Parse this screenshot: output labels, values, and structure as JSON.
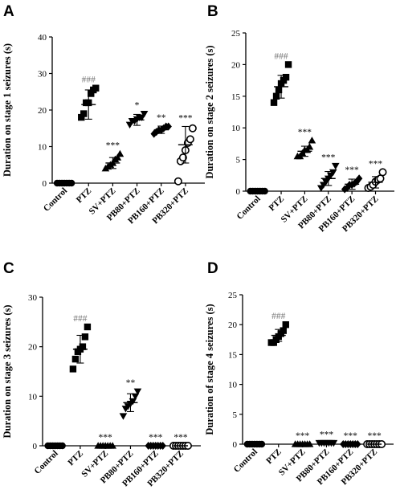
{
  "figure": {
    "panels": [
      "A",
      "B",
      "C",
      "D"
    ]
  },
  "chart_data": [
    {
      "panel": "A",
      "type": "scatter",
      "ylabel": "Duration on stage 1 seizures (s)",
      "xlabel": "",
      "ylim": [
        0,
        40
      ],
      "yticks": [
        0,
        10,
        20,
        30,
        40
      ],
      "categories": [
        "Control",
        "PTZ",
        "SV+PTZ",
        "PB80+PTZ",
        "PB160+PTZ",
        "PB320+PTZ"
      ],
      "markers": [
        "circle",
        "square",
        "triangle-up",
        "triangle-down",
        "diamond",
        "circle-open"
      ],
      "significance": [
        "",
        "###",
        "***",
        "*",
        "**",
        "***"
      ],
      "mean": [
        0,
        21.5,
        5.5,
        17.3,
        14.6,
        10.5
      ],
      "sd": [
        0,
        4.0,
        1.5,
        1.5,
        1.0,
        5.0
      ],
      "points": [
        [
          0,
          0,
          0,
          0,
          0,
          0,
          0
        ],
        [
          18,
          19,
          22,
          22,
          24.5,
          25.5,
          26
        ],
        [
          4,
          4.5,
          5,
          5.5,
          6.5,
          7,
          8
        ],
        [
          16,
          17,
          17,
          17.5,
          18,
          18,
          19
        ],
        [
          13.5,
          14,
          14.5,
          14.5,
          15,
          15.5,
          15.5
        ],
        [
          0.5,
          6,
          7,
          9,
          11,
          12,
          15
        ]
      ]
    },
    {
      "panel": "B",
      "type": "scatter",
      "ylabel": "Duration on stage 2 seizures (s)",
      "xlabel": "",
      "ylim": [
        0,
        25
      ],
      "yticks": [
        0,
        5,
        10,
        15,
        20,
        25
      ],
      "categories": [
        "Control",
        "PTZ",
        "SV+PTZ",
        "PB80+PTZ",
        "PB160+PTZ",
        "PB320+PTZ"
      ],
      "markers": [
        "circle",
        "square",
        "triangle-up",
        "triangle-down",
        "diamond",
        "circle-open"
      ],
      "significance": [
        "",
        "###",
        "***",
        "***",
        "***",
        "***"
      ],
      "mean": [
        0,
        16.5,
        6.3,
        2.0,
        1.1,
        1.4
      ],
      "sd": [
        0,
        1.8,
        0.8,
        1.1,
        0.8,
        0.9
      ],
      "points": [
        [
          0,
          0,
          0,
          0,
          0,
          0,
          0
        ],
        [
          14,
          15,
          16,
          17,
          17.5,
          18,
          20
        ],
        [
          5.5,
          5.5,
          6,
          6.5,
          6.5,
          7,
          8
        ],
        [
          0.5,
          1,
          1.5,
          2,
          2.5,
          3,
          4
        ],
        [
          0.3,
          0.5,
          1,
          1,
          1.2,
          1.5,
          2
        ],
        [
          0.5,
          0.7,
          1,
          1.5,
          1.8,
          2,
          3
        ]
      ]
    },
    {
      "panel": "C",
      "type": "scatter",
      "ylabel": "Duration on stage 3 seizures (s)",
      "xlabel": "",
      "ylim": [
        0,
        30
      ],
      "yticks": [
        0,
        10,
        20,
        30
      ],
      "categories": [
        "Control",
        "PTZ",
        "SV+PTZ",
        "PB80+PTZ",
        "PB160+PTZ",
        "PB320+PTZ"
      ],
      "markers": [
        "circle",
        "square",
        "triangle-up",
        "triangle-down",
        "diamond",
        "circle-open"
      ],
      "significance": [
        "",
        "###",
        "***",
        "**",
        "***",
        "***"
      ],
      "mean": [
        0,
        19.5,
        0,
        8.7,
        0,
        0
      ],
      "sd": [
        0,
        2.8,
        0,
        1.8,
        0,
        0
      ],
      "points": [
        [
          0,
          0,
          0,
          0,
          0,
          0,
          0
        ],
        [
          15.5,
          17.5,
          19,
          19.5,
          20,
          22,
          24
        ],
        [
          0,
          0,
          0,
          0,
          0,
          0,
          0
        ],
        [
          6,
          7.5,
          8,
          8.5,
          9,
          10,
          11
        ],
        [
          0,
          0,
          0,
          0,
          0,
          0,
          0
        ],
        [
          0,
          0,
          0,
          0,
          0,
          0,
          0
        ]
      ]
    },
    {
      "panel": "D",
      "type": "scatter",
      "ylabel": "Duration of stage 4 seizures (s)",
      "xlabel": "",
      "ylim": [
        0,
        25
      ],
      "yticks": [
        0,
        5,
        10,
        15,
        20,
        25
      ],
      "categories": [
        "Control",
        "PTZ",
        "SV+PTZ",
        "PB80+PTZ",
        "PB160+PTZ",
        "PB320+PTZ"
      ],
      "markers": [
        "circle",
        "square",
        "triangle-up",
        "triangle-down",
        "diamond",
        "circle-open"
      ],
      "significance": [
        "",
        "###",
        "***",
        "***",
        "***",
        "***"
      ],
      "mean": [
        0,
        18.2,
        0,
        0.2,
        0,
        0
      ],
      "sd": [
        0,
        1.0,
        0,
        0,
        0,
        0
      ],
      "points": [
        [
          0,
          0,
          0,
          0,
          0,
          0,
          0
        ],
        [
          17,
          17,
          17.5,
          18,
          18.5,
          19,
          20
        ],
        [
          0,
          0,
          0,
          0,
          0,
          0,
          0
        ],
        [
          0.2,
          0.2,
          0.2,
          0.2,
          0.2,
          0.2,
          0.2
        ],
        [
          0,
          0,
          0,
          0,
          0,
          0,
          0
        ],
        [
          0,
          0,
          0,
          0,
          0,
          0,
          0
        ]
      ]
    }
  ]
}
